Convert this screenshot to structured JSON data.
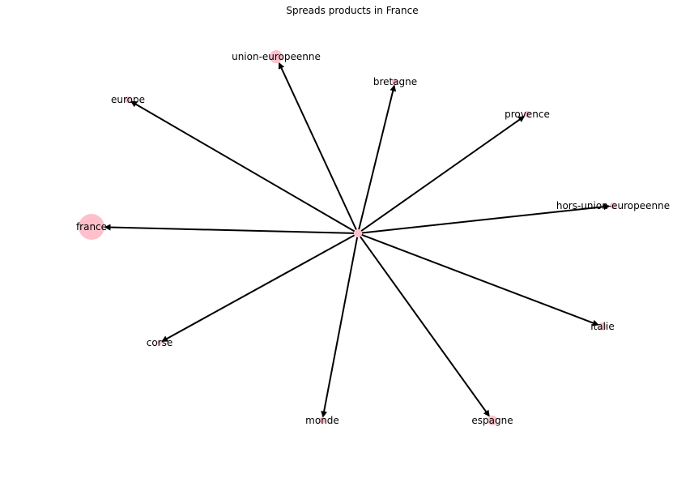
{
  "diagram": {
    "title": "Spreads products in France",
    "node_color": "#ffc0cb",
    "edge_color": "#000000",
    "nodes": [
      {
        "id": "center",
        "label": ""
      },
      {
        "id": "france",
        "label": "france"
      },
      {
        "id": "union-europeenne",
        "label": "union-europeenne"
      },
      {
        "id": "bretagne",
        "label": "bretagne"
      },
      {
        "id": "europe",
        "label": "europe"
      },
      {
        "id": "provence",
        "label": "provence"
      },
      {
        "id": "hors-union-europeenne",
        "label": "hors-union-europeenne"
      },
      {
        "id": "italie",
        "label": "italie"
      },
      {
        "id": "corse",
        "label": "corse"
      },
      {
        "id": "monde",
        "label": "monde"
      },
      {
        "id": "espagne",
        "label": "espagne"
      }
    ],
    "edges": [
      {
        "from": "center",
        "to": "france",
        "directed": true
      },
      {
        "from": "center",
        "to": "union-europeenne",
        "directed": true
      },
      {
        "from": "center",
        "to": "bretagne",
        "directed": true
      },
      {
        "from": "center",
        "to": "europe",
        "directed": true
      },
      {
        "from": "center",
        "to": "provence",
        "directed": true
      },
      {
        "from": "center",
        "to": "hors-union-europeenne",
        "directed": true
      },
      {
        "from": "center",
        "to": "italie",
        "directed": true
      },
      {
        "from": "center",
        "to": "corse",
        "directed": true
      },
      {
        "from": "center",
        "to": "monde",
        "directed": true
      },
      {
        "from": "center",
        "to": "espagne",
        "directed": true
      }
    ]
  }
}
